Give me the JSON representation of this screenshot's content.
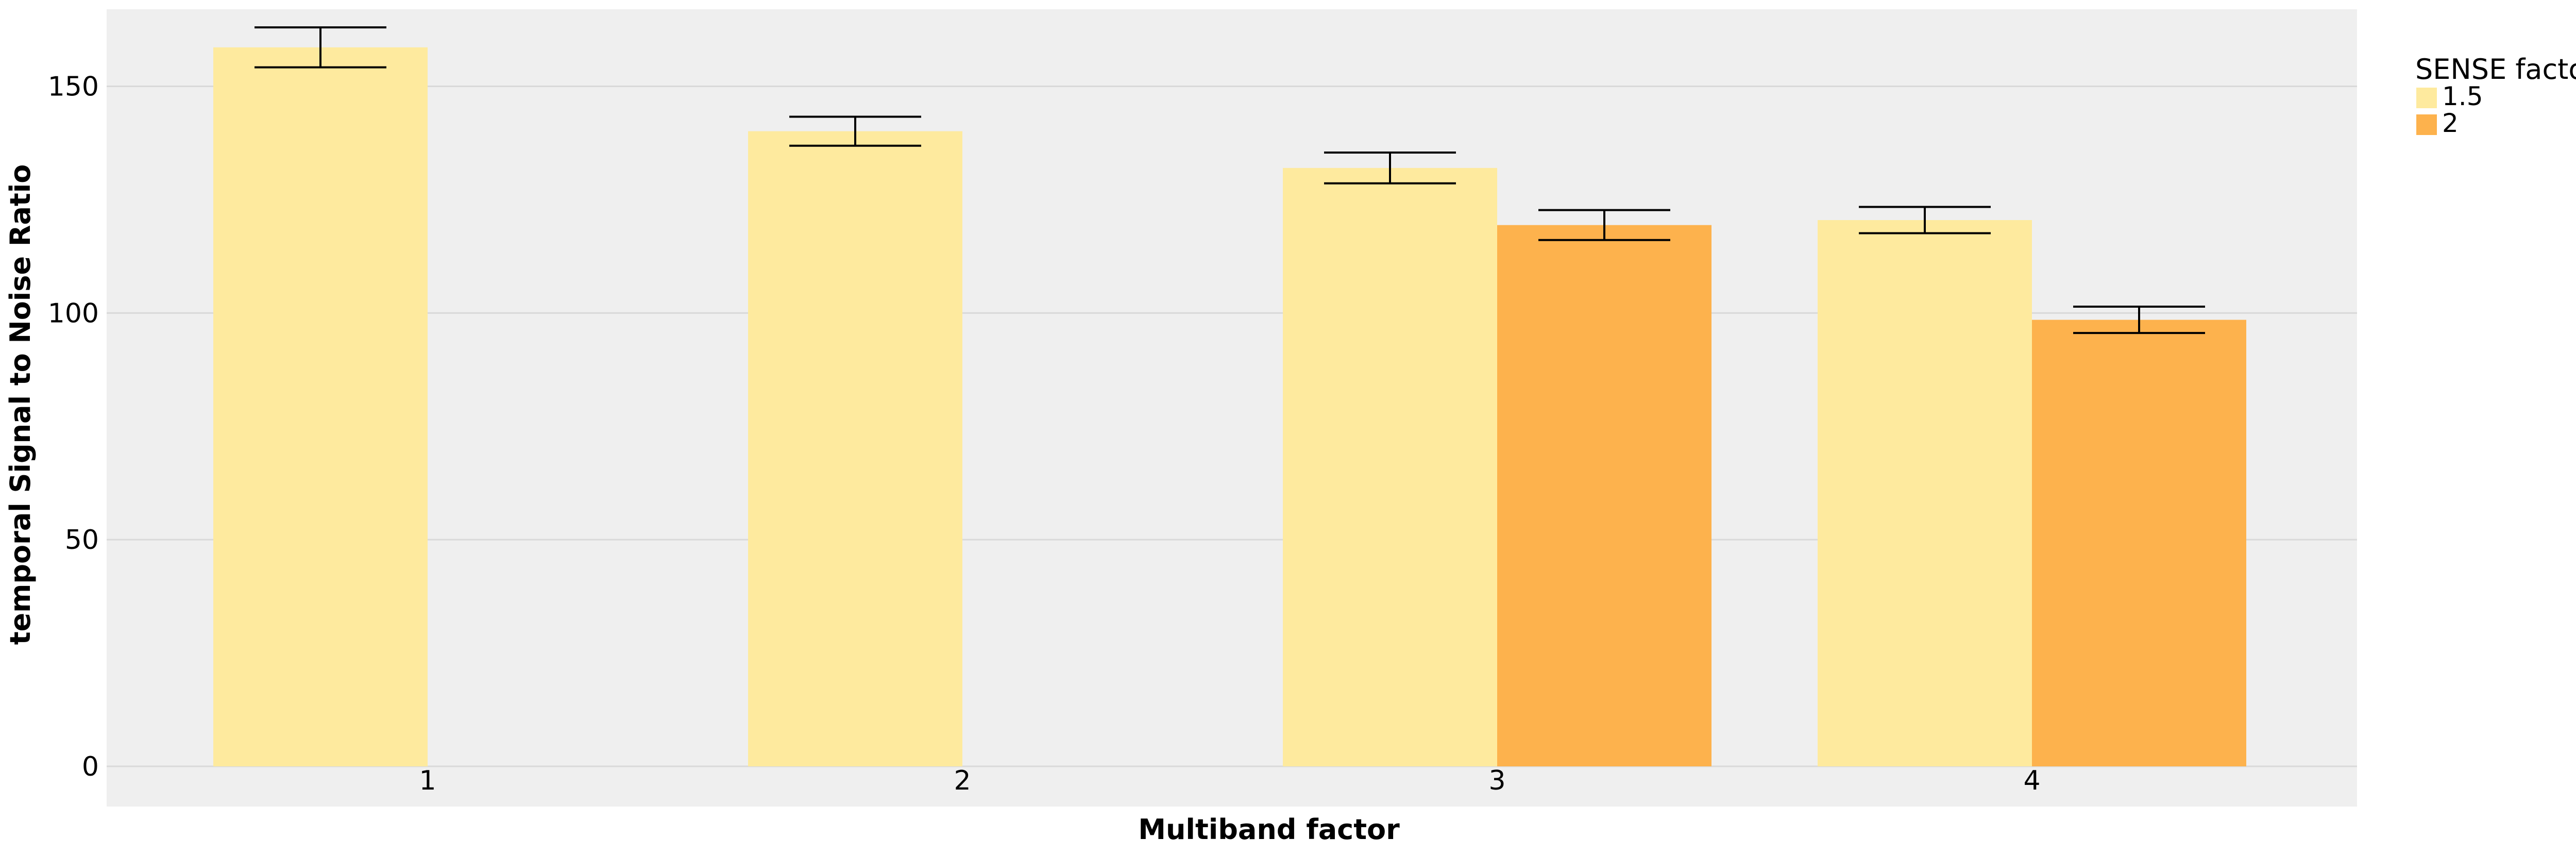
{
  "chart_data": {
    "type": "bar",
    "xlabel": "Multiband factor",
    "ylabel": "temporal Signal to Noise Ratio",
    "categories": [
      "1",
      "2",
      "3",
      "4"
    ],
    "ylim": [
      0,
      167
    ],
    "yticks": [
      0,
      50,
      100,
      150
    ],
    "grid": true,
    "legend": {
      "title": "SENSE factor",
      "placement": "right"
    },
    "series": [
      {
        "name": "1.5",
        "color": "#FEEA9E",
        "values": [
          158.6,
          140.1,
          132.0,
          120.5
        ],
        "err_low": [
          154.2,
          136.9,
          128.6,
          117.6
        ],
        "err_high": [
          163.0,
          143.3,
          135.4,
          123.4
        ]
      },
      {
        "name": "2",
        "color": "#FDB24D",
        "values": [
          null,
          null,
          119.4,
          98.5
        ],
        "err_low": [
          null,
          null,
          116.1,
          95.6
        ],
        "err_high": [
          null,
          null,
          122.7,
          101.4
        ]
      }
    ],
    "panel_color": "#EFEFEF",
    "grid_color": "#D9D9D9"
  }
}
